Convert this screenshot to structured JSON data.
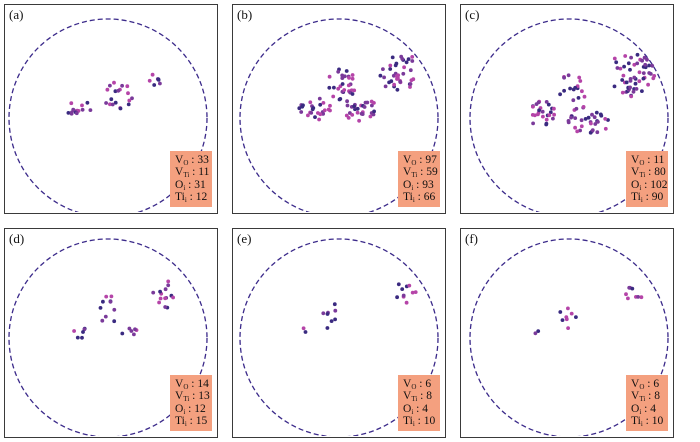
{
  "panels": [
    {
      "label": "(a)",
      "counts": {
        "VO": "33",
        "VTi": "11",
        "O": "31",
        "Ti": "12"
      }
    },
    {
      "label": "(b)",
      "counts": {
        "VO": "97",
        "VTi": "59",
        "O": "93",
        "Ti": "66"
      }
    },
    {
      "label": "(c)",
      "counts": {
        "VO": "11",
        "VTi": "80",
        "O": "102",
        "Ti": "90"
      }
    },
    {
      "label": "(d)",
      "counts": {
        "VO": "14",
        "VTi": "13",
        "O": "12",
        "Ti": "15"
      }
    },
    {
      "label": "(e)",
      "counts": {
        "VO": "6",
        "VTi": "8",
        "O": "4",
        "Ti": "10"
      }
    },
    {
      "label": "(f)",
      "counts": {
        "VO": "6",
        "VTi": "8",
        "O": "4",
        "Ti": "10"
      }
    }
  ],
  "legend_symbols": {
    "V": "V",
    "O": "O",
    "Ti": "Ti",
    "sub_O": "O",
    "sub_Ti": "Ti",
    "sep": ":"
  },
  "colors": {
    "frame": "#3a3a3a",
    "circle": "#3b2a8a",
    "legend_bg": "#f4a07f",
    "dot_dark": "#3a2a80",
    "dot_purple": "#7a3a9a",
    "dot_magenta": "#b544a8"
  }
}
